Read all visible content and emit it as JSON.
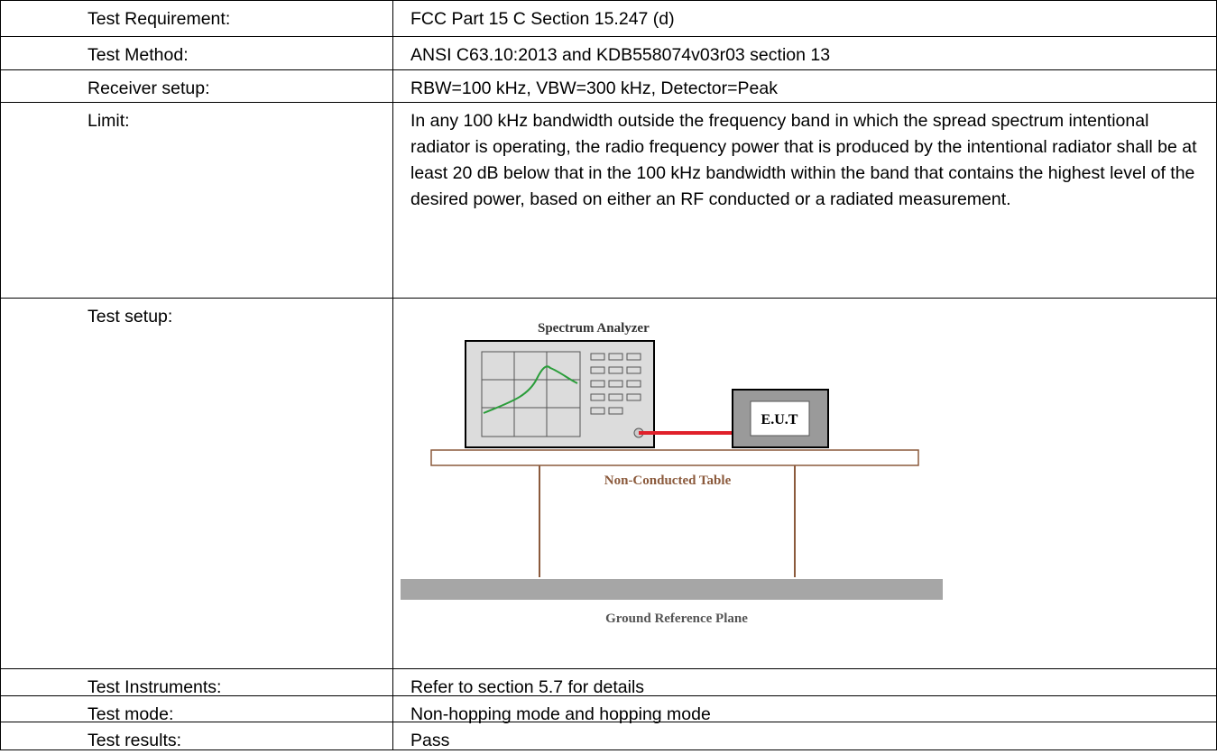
{
  "table": {
    "rows": [
      [
        "Test Requirement:",
        "FCC Part 15 C Section 15.247 (d)"
      ],
      [
        "Test Method:",
        "ANSI C63.10:2013 and KDB558074v03r03 section 13"
      ],
      [
        "Receiver setup:",
        "RBW=100 kHz, VBW=300 kHz, Detector=Peak"
      ],
      [
        "Limit:",
        "In any 100 kHz bandwidth outside the frequency band in which the spread spectrum intentional radiator is operating, the radio frequency power that is produced by the intentional radiator shall be at least 20 dB below that in the 100 kHz bandwidth within the band that contains the highest level of the desired power, based on either an RF conducted or a radiated measurement."
      ],
      [
        "Test setup:",
        ""
      ],
      [
        "Test Instruments:",
        "Refer to section 5.7 for details"
      ],
      [
        "Test mode:",
        "Non-hopping mode and hopping mode"
      ],
      [
        "Test results:",
        "Pass"
      ]
    ]
  },
  "diagram": {
    "analyzer_label": "Spectrum Analyzer",
    "eut_label": "E.U.T",
    "table_label": "Non-Conducted Table",
    "ground_label": "Ground Reference Plane"
  }
}
